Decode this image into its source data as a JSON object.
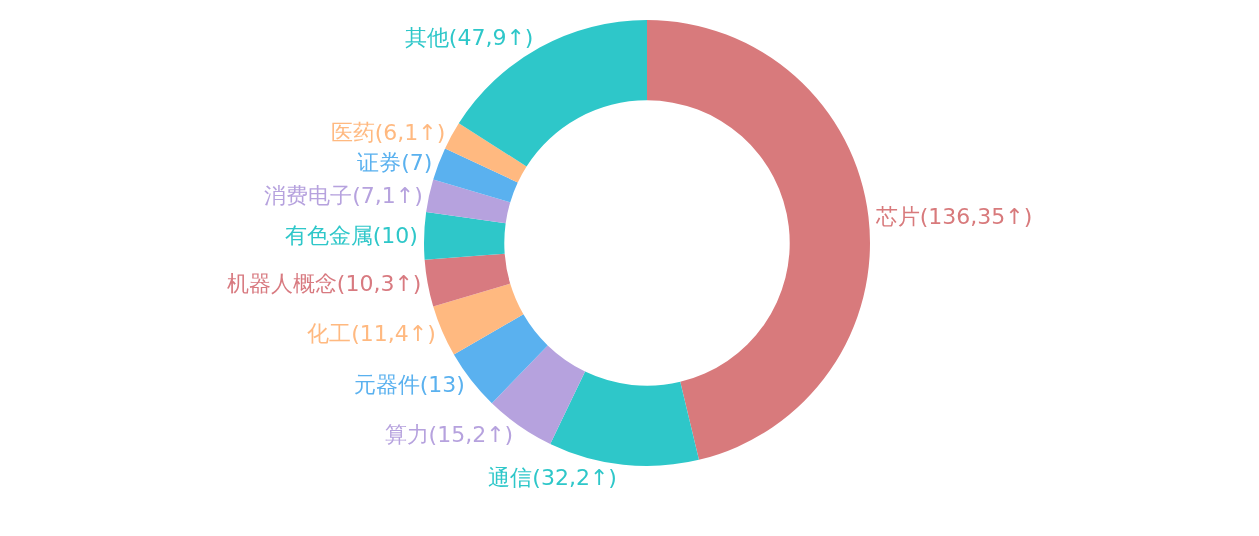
{
  "chart_data": {
    "type": "donut",
    "categories": [
      "芯片(136,35↑)",
      "通信(32,2↑)",
      "算力(15,2↑)",
      "元器件(13)",
      "化工(11,4↑)",
      "机器人概念(10,3↑)",
      "有色金属(10)",
      "消费电子(7,1↑)",
      "证券(7)",
      "医药(6,1↑)",
      "其他(47,9↑)"
    ],
    "values": [
      136,
      32,
      15,
      13,
      11,
      10,
      10,
      7,
      7,
      6,
      47
    ],
    "colors": [
      "#d87a7c",
      "#2ec7c9",
      "#b6a2de",
      "#5ab1ef",
      "#ffb980",
      "#d87a80",
      "#2ec7c9",
      "#b6a2de",
      "#5ab1ef",
      "#ffb980",
      "#2ec7c9"
    ],
    "legend": false
  }
}
